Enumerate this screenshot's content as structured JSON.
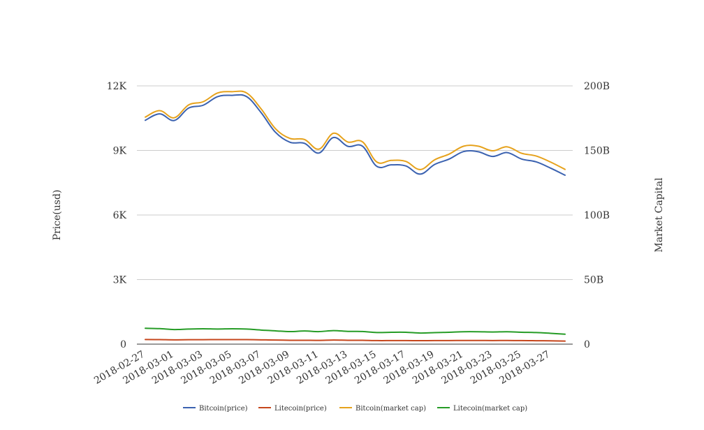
{
  "chart_data": {
    "type": "line",
    "x": [
      "2018-02-27",
      "2018-02-28",
      "2018-03-01",
      "2018-03-02",
      "2018-03-03",
      "2018-03-04",
      "2018-03-05",
      "2018-03-06",
      "2018-03-07",
      "2018-03-08",
      "2018-03-09",
      "2018-03-10",
      "2018-03-11",
      "2018-03-12",
      "2018-03-13",
      "2018-03-14",
      "2018-03-15",
      "2018-03-16",
      "2018-03-17",
      "2018-03-18",
      "2018-03-19",
      "2018-03-20",
      "2018-03-21",
      "2018-03-22",
      "2018-03-23",
      "2018-03-24",
      "2018-03-25",
      "2018-03-26",
      "2018-03-27",
      "2018-03-28"
    ],
    "x_tick_labels": [
      "2018-02-27",
      "2018-03-01",
      "2018-03-03",
      "2018-03-05",
      "2018-03-07",
      "2018-03-09",
      "2018-03-11",
      "2018-03-13",
      "2018-03-15",
      "2018-03-17",
      "2018-03-19",
      "2018-03-21",
      "2018-03-23",
      "2018-03-25",
      "2018-03-27"
    ],
    "y_left": {
      "label": "Price(usd)",
      "ticks": [
        "0",
        "3K",
        "6K",
        "9K",
        "12K"
      ],
      "tick_values": [
        0,
        3000,
        6000,
        9000,
        12000
      ],
      "range": [
        0,
        12000
      ]
    },
    "y_right": {
      "label": "Market Capital",
      "ticks": [
        "0",
        "50B",
        "100B",
        "150B",
        "200B"
      ],
      "tick_values": [
        0,
        50,
        100,
        150,
        200
      ],
      "range": [
        0,
        200
      ],
      "unit": "B"
    },
    "grid": true,
    "legend_position": "bottom",
    "series": [
      {
        "name": "Bitcoin(price)",
        "axis": "left",
        "color": "#3b62b0",
        "values": [
          10400,
          10700,
          10390,
          10970,
          11100,
          11500,
          11560,
          11500,
          10760,
          9840,
          9380,
          9330,
          8880,
          9600,
          9190,
          9200,
          8260,
          8330,
          8280,
          7900,
          8350,
          8600,
          8950,
          8940,
          8720,
          8900,
          8600,
          8470,
          8180,
          7850
        ]
      },
      {
        "name": "Litecoin(price)",
        "axis": "left",
        "color": "#c6461c",
        "values": [
          215,
          210,
          200,
          205,
          208,
          210,
          212,
          210,
          200,
          192,
          180,
          180,
          175,
          190,
          180,
          178,
          165,
          165,
          165,
          162,
          165,
          168,
          172,
          170,
          168,
          170,
          165,
          160,
          155,
          140
        ]
      },
      {
        "name": "Bitcoin(market cap)",
        "axis": "right",
        "color": "#e6a21c",
        "values": [
          175.8,
          180.8,
          175.3,
          185.3,
          187.7,
          194.5,
          195.5,
          194.5,
          182.2,
          166.8,
          159.3,
          158.5,
          151.0,
          163.3,
          156.5,
          156.7,
          141.0,
          142.3,
          141.5,
          135.2,
          142.8,
          147.2,
          153.3,
          153.3,
          149.7,
          152.8,
          147.8,
          145.7,
          141.0,
          135.3
        ]
      },
      {
        "name": "Litecoin(market cap)",
        "axis": "right",
        "color": "#269c26",
        "values": [
          12.3,
          12.0,
          11.3,
          11.7,
          11.9,
          11.7,
          11.9,
          11.7,
          10.9,
          10.3,
          9.7,
          10.2,
          9.7,
          10.5,
          9.9,
          9.8,
          9.0,
          9.2,
          9.2,
          8.6,
          8.9,
          9.2,
          9.6,
          9.6,
          9.4,
          9.6,
          9.2,
          9.0,
          8.4,
          7.7
        ]
      }
    ]
  }
}
